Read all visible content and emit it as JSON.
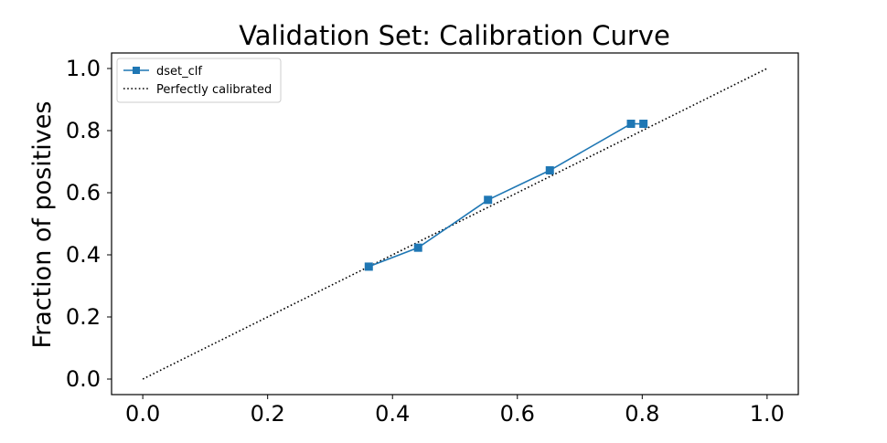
{
  "chart_data": {
    "type": "line",
    "title": "Validation Set: Calibration Curve",
    "xlabel": "",
    "ylabel": "Fraction of positives",
    "xlim": [
      -0.05,
      1.05
    ],
    "ylim": [
      -0.05,
      1.05
    ],
    "xticks": [
      0.0,
      0.2,
      0.4,
      0.6,
      0.8,
      1.0
    ],
    "yticks": [
      0.0,
      0.2,
      0.4,
      0.6,
      0.8,
      1.0
    ],
    "xtick_labels": [
      "0.0",
      "0.2",
      "0.4",
      "0.6",
      "0.8",
      "1.0"
    ],
    "ytick_labels": [
      "0.0",
      "0.2",
      "0.4",
      "0.6",
      "0.8",
      "1.0"
    ],
    "legend_position": "top-left",
    "grid": false,
    "series": [
      {
        "name": "dset_clf",
        "style": "line-square-markers",
        "color": "#1f77b4",
        "x": [
          0.362,
          0.441,
          0.553,
          0.652,
          0.782,
          0.802
        ],
        "y": [
          0.362,
          0.423,
          0.577,
          0.672,
          0.822,
          0.822
        ]
      },
      {
        "name": "Perfectly calibrated",
        "style": "dotted",
        "color": "#000000",
        "x": [
          0.0,
          1.0
        ],
        "y": [
          0.0,
          1.0
        ]
      }
    ]
  }
}
